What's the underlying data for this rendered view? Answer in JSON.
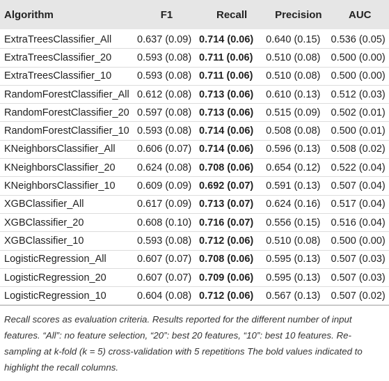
{
  "table": {
    "header": [
      "Algorithm",
      "F1",
      "Recall",
      "Precision",
      "AUC"
    ],
    "rows": [
      [
        "ExtraTreesClassifier_All",
        "0.637 (0.09)",
        "0.714 (0.06)",
        "0.640 (0.15)",
        "0.536 (0.05)"
      ],
      [
        "ExtraTreesClassifier_20",
        "0.593 (0.08)",
        "0.711 (0.06)",
        "0.510 (0.08)",
        "0.500 (0.00)"
      ],
      [
        "ExtraTreesClassifier_10",
        "0.593 (0.08)",
        "0.711 (0.06)",
        "0.510 (0.08)",
        "0.500 (0.00)"
      ],
      [
        "RandomForestClassifier_All",
        "0.612 (0.08)",
        "0.713 (0.06)",
        "0.610 (0.13)",
        "0.512 (0.03)"
      ],
      [
        "RandomForestClassifier_20",
        "0.597 (0.08)",
        "0.713 (0.06)",
        "0.515 (0.09)",
        "0.502 (0.01)"
      ],
      [
        "RandomForestClassifier_10",
        "0.593 (0.08)",
        "0.714 (0.06)",
        "0.508 (0.08)",
        "0.500 (0.01)"
      ],
      [
        "KNeighborsClassifier_All",
        "0.606 (0.07)",
        "0.714 (0.06)",
        "0.596 (0.13)",
        "0.508 (0.02)"
      ],
      [
        "KNeighborsClassifier_20",
        "0.624 (0.08)",
        "0.708 (0.06)",
        "0.654 (0.12)",
        "0.522 (0.04)"
      ],
      [
        "KNeighborsClassifier_10",
        "0.609 (0.09)",
        "0.692 (0.07)",
        "0.591 (0.13)",
        "0.507 (0.04)"
      ],
      [
        "XGBClassifier_All",
        "0.617 (0.09)",
        "0.713 (0.07)",
        "0.624 (0.16)",
        "0.517 (0.04)"
      ],
      [
        "XGBClassifier_20",
        "0.608 (0.10)",
        "0.716 (0.07)",
        "0.556 (0.15)",
        "0.516 (0.04)"
      ],
      [
        "XGBClassifier_10",
        "0.593 (0.08)",
        "0.712 (0.06)",
        "0.510 (0.08)",
        "0.500 (0.00)"
      ],
      [
        "LogisticRegression_All",
        "0.607 (0.07)",
        "0.708 (0.06)",
        "0.595 (0.13)",
        "0.507 (0.03)"
      ],
      [
        "LogisticRegression_20",
        "0.607 (0.07)",
        "0.709 (0.06)",
        "0.595 (0.13)",
        "0.507 (0.03)"
      ],
      [
        "LogisticRegression_10",
        "0.604 (0.08)",
        "0.712 (0.06)",
        "0.567 (0.13)",
        "0.507 (0.02)"
      ]
    ],
    "footnote": "Recall scores as evaluation criteria. Results reported for the different number of input features. “All”: no feature selection, “20”: best 20 features, “10”: best 10 features. Re-sampling at k-fold (k = 5) cross-validation with 5 repetitions The bold values indicated to highlight the recall columns."
  }
}
